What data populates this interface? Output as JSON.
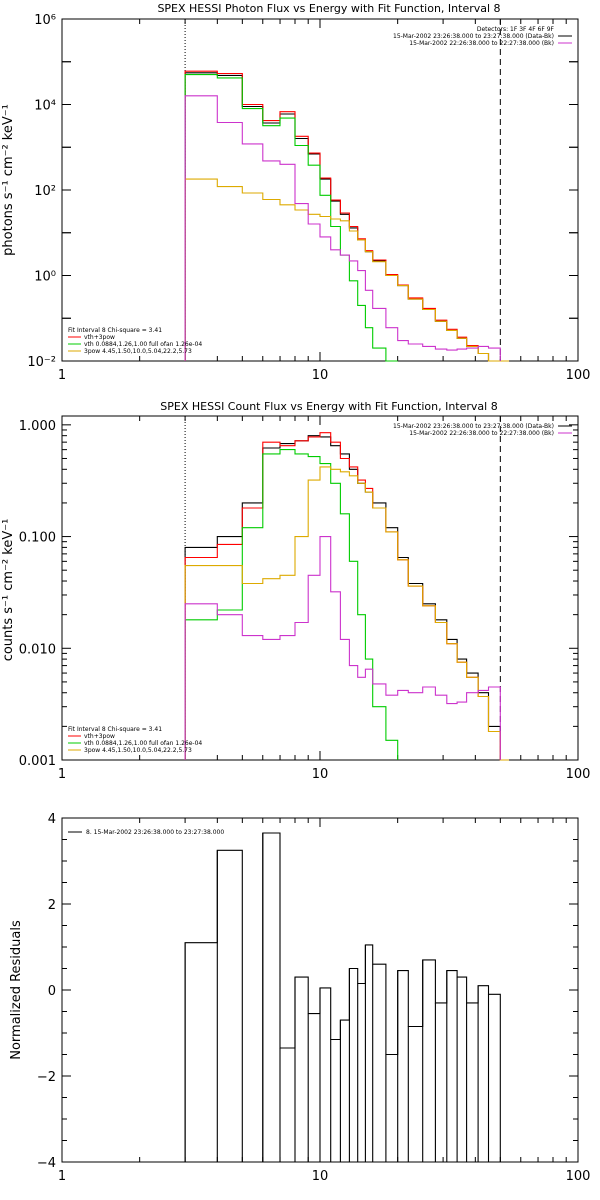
{
  "chart_data": [
    {
      "type": "line",
      "title": "SPEX HESSI Photon Flux vs Energy with Fit Function, Interval 8",
      "ylabel": "photons s⁻¹ cm⁻² keV⁻¹",
      "xlabel": "",
      "xscale": "log",
      "yscale": "log",
      "xlim": [
        1,
        100
      ],
      "ylim": [
        0.01,
        1000000
      ],
      "grid": false,
      "x_ticklabels": [
        "1",
        "10",
        "100"
      ],
      "y_ticklabels": [
        "10⁻²",
        "10⁰",
        "10²",
        "10⁴",
        "10⁶"
      ],
      "vlines": [
        {
          "x": 3,
          "style": "dotted"
        },
        {
          "x": 50,
          "style": "dashed"
        }
      ],
      "legend_top_right": [
        {
          "text": "Detectors: 1F 3F 4F 6F 9F",
          "color": "#000000"
        },
        {
          "text": "15-Mar-2002 23:26:38.000 to 23:27:38.000 (Data-Bk)",
          "color": "#000000"
        },
        {
          "text": "15-Mar-2002 22:26:38.000 to 22:27:38.000 (Bk)",
          "color": "#cc33cc"
        }
      ],
      "legend_bottom_left": [
        {
          "text": "Fit Interval 8   Chi-square = 3.41",
          "color": "#000000"
        },
        {
          "text": "vth+3pow",
          "color": "#ff0000"
        },
        {
          "text": "vth 0.0884,1.26,1.00  full ofan 1.26e-04",
          "color": "#00cc00"
        },
        {
          "text": "3pow 4.45,1.50,10.0,5.04,22.2,5.73",
          "color": "#ddaa00"
        }
      ],
      "edges": [
        3,
        4,
        5,
        6,
        7,
        8,
        9,
        10,
        11,
        12,
        13,
        14,
        15,
        16,
        18,
        20,
        22,
        25,
        28,
        31,
        34,
        37,
        41,
        45,
        50,
        54
      ],
      "series": [
        {
          "name": "Data-Bk",
          "color": "#000000",
          "values": [
            55000,
            48000,
            9000,
            3700,
            6000,
            1600,
            700,
            180,
            55,
            27,
            13,
            6.8,
            3.6,
            2.2,
            1.0,
            0.58,
            0.28,
            0.16,
            0.085,
            0.052,
            0.034,
            0.022,
            0.015,
            0.01,
            null
          ]
        },
        {
          "name": "vth+3pow",
          "color": "#ff0000",
          "values": [
            60000,
            53000,
            10000,
            4200,
            6800,
            1800,
            730,
            190,
            58,
            29,
            14,
            7.2,
            3.8,
            2.3,
            1.05,
            0.6,
            0.3,
            0.17,
            0.09,
            0.055,
            0.036,
            0.023,
            0.015,
            0.01,
            null
          ]
        },
        {
          "name": "vth",
          "color": "#00cc00",
          "values": [
            50000,
            42000,
            8000,
            3200,
            4800,
            1100,
            380,
            75,
            14,
            3.0,
            0.75,
            0.2,
            0.06,
            0.02,
            0.01,
            null,
            null,
            null,
            null,
            null,
            null,
            null,
            null,
            null,
            null
          ]
        },
        {
          "name": "3pow",
          "color": "#ddaa00",
          "values": [
            180,
            120,
            85,
            60,
            45,
            34,
            27,
            24,
            21,
            19,
            11,
            6.8,
            3.6,
            2.1,
            1.0,
            0.58,
            0.28,
            0.16,
            0.085,
            0.052,
            0.034,
            0.022,
            0.015,
            0.01,
            0.01
          ]
        },
        {
          "name": "Bk",
          "color": "#cc33cc",
          "values": [
            16000,
            3800,
            1200,
            480,
            400,
            48,
            16,
            8,
            4,
            3.0,
            2.2,
            1.3,
            0.45,
            0.17,
            0.06,
            0.03,
            0.025,
            0.022,
            0.019,
            0.018,
            0.019,
            0.02,
            0.022,
            0.02,
            null
          ]
        }
      ]
    },
    {
      "type": "line",
      "title": "SPEX HESSI Count Flux vs Energy with Fit Function, Interval 8",
      "ylabel": "counts s⁻¹ cm⁻² keV⁻¹",
      "xlabel": "",
      "xscale": "log",
      "yscale": "log",
      "xlim": [
        1,
        100
      ],
      "ylim": [
        0.001,
        1.2
      ],
      "grid": false,
      "x_ticklabels": [
        "1",
        "10",
        "100"
      ],
      "y_ticklabels": [
        "0.001",
        "0.010",
        "0.100",
        "1.000"
      ],
      "vlines": [
        {
          "x": 3,
          "style": "dotted"
        },
        {
          "x": 50,
          "style": "dashed"
        }
      ],
      "legend_top_right": [
        {
          "text": "15-Mar-2002 23:26:38.000 to 23:27:38.000 (Data-Bk)",
          "color": "#000000"
        },
        {
          "text": "15-Mar-2002 22:26:38.000 to 22:27:38.000 (Bk)",
          "color": "#cc33cc"
        }
      ],
      "legend_bottom_left": [
        {
          "text": "Fit Interval 8   Chi-square = 3.41",
          "color": "#000000"
        },
        {
          "text": "vth+3pow",
          "color": "#ff0000"
        },
        {
          "text": "vth 0.0884,1.26,1.00  full ofan 1.26e-04",
          "color": "#00cc00"
        },
        {
          "text": "3pow 4.45,1.50,10.0,5.04,22.2,5.73",
          "color": "#ddaa00"
        }
      ],
      "edges": [
        3,
        4,
        5,
        6,
        7,
        8,
        9,
        10,
        11,
        12,
        13,
        14,
        15,
        16,
        18,
        20,
        22,
        25,
        28,
        31,
        34,
        37,
        41,
        45,
        50,
        54
      ],
      "series": [
        {
          "name": "Data-Bk",
          "color": "#000000",
          "values": [
            0.08,
            0.1,
            0.2,
            0.62,
            0.68,
            0.72,
            0.8,
            0.78,
            0.65,
            0.55,
            0.4,
            0.3,
            0.25,
            0.2,
            0.12,
            0.065,
            0.038,
            0.025,
            0.018,
            0.012,
            0.008,
            0.006,
            0.004,
            0.002,
            null
          ]
        },
        {
          "name": "vth+3pow",
          "color": "#ff0000",
          "values": [
            0.065,
            0.085,
            0.18,
            0.7,
            0.65,
            0.72,
            0.78,
            0.85,
            0.7,
            0.5,
            0.42,
            0.32,
            0.27,
            0.18,
            0.11,
            0.062,
            0.036,
            0.024,
            0.017,
            0.011,
            0.0075,
            0.0055,
            0.0037,
            0.0018,
            0.001
          ]
        },
        {
          "name": "vth",
          "color": "#00cc00",
          "values": [
            0.018,
            0.022,
            0.12,
            0.55,
            0.6,
            0.55,
            0.52,
            0.45,
            0.3,
            0.16,
            0.06,
            0.02,
            0.008,
            0.003,
            0.0015,
            null,
            null,
            null,
            null,
            null,
            null,
            null,
            null,
            null,
            null
          ]
        },
        {
          "name": "3pow",
          "color": "#ddaa00",
          "values": [
            0.055,
            0.055,
            0.038,
            0.042,
            0.045,
            0.1,
            0.32,
            0.42,
            0.4,
            0.38,
            0.35,
            0.3,
            0.25,
            0.18,
            0.11,
            0.062,
            0.036,
            0.024,
            0.017,
            0.011,
            0.0075,
            0.0055,
            0.0037,
            0.0018,
            0.001
          ]
        },
        {
          "name": "Bk",
          "color": "#cc33cc",
          "values": [
            0.025,
            0.02,
            0.013,
            0.012,
            0.013,
            0.017,
            0.045,
            0.1,
            0.032,
            0.012,
            0.007,
            0.0055,
            0.0065,
            0.0048,
            0.0038,
            0.0042,
            0.004,
            0.0045,
            0.0038,
            0.0032,
            0.0033,
            0.004,
            0.0042,
            0.0045,
            null
          ]
        }
      ]
    },
    {
      "type": "line",
      "title": "",
      "ylabel": "Normalized Residuals",
      "xlabel": "",
      "xscale": "log",
      "yscale": "linear",
      "xlim": [
        1,
        100
      ],
      "ylim": [
        -4,
        4
      ],
      "grid": false,
      "x_ticklabels": [
        "1",
        "10",
        "100"
      ],
      "y_ticklabels": [
        "−4",
        "−2",
        "0",
        "2",
        "4"
      ],
      "legend_top_left": [
        {
          "text": "8. 15-Mar-2002 23:26:38.000 to 23:27:38.000",
          "color": "#000000"
        }
      ],
      "edges": [
        3,
        4,
        5,
        6,
        7,
        8,
        9,
        10,
        11,
        12,
        13,
        14,
        15,
        16,
        18,
        20,
        22,
        25,
        28,
        31,
        34,
        37,
        41,
        45,
        50
      ],
      "series": [
        {
          "name": "residuals",
          "color": "#000000",
          "values": [
            1.1,
            3.25,
            -4.0,
            3.65,
            -1.35,
            0.3,
            -0.55,
            0.05,
            -1.15,
            -0.7,
            0.5,
            0.15,
            1.05,
            0.6,
            -1.5,
            0.45,
            -0.85,
            0.7,
            -0.3,
            0.45,
            0.3,
            -0.3,
            0.1,
            -0.1
          ]
        }
      ]
    }
  ]
}
